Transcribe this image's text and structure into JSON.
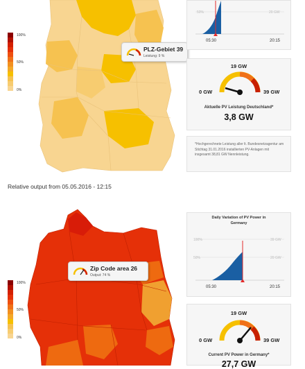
{
  "top": {
    "legend": {
      "labels": [
        "100%",
        "50%",
        "0%"
      ]
    },
    "tooltip": {
      "title": "PLZ-Gebiet 39",
      "subtitle": "Leistung: 9 %"
    },
    "chart": {
      "pct_label": "50%",
      "gw_label": "20 GW",
      "time_start": "05:30",
      "time_end": "20:15"
    },
    "gauge": {
      "max": "19 GW",
      "min_label": "0 GW",
      "max_label": "39 GW",
      "caption": "Aktuelle PV Leistung Deutschland*",
      "value": "3,8 GW"
    },
    "note": "*Hochgerechnete Leistung aller lt. Bundesnetzagentur am Stichtag 31.01.2016 installierten PV-Anlagen mit insgesamt 38,81 GW Nennleistung."
  },
  "timestamp": "Relative output from 05.05.2016 - 12:15",
  "bottom": {
    "legend": {
      "labels": [
        "100%",
        "50%",
        "0%"
      ]
    },
    "tooltip": {
      "title": "Zip Code area 26",
      "subtitle": "Output: 74 %"
    },
    "chart": {
      "title": "Daily Variation of PV Power in Germany",
      "pct_label_1": "100%",
      "pct_label_2": "50%",
      "gw_label_1": "39 GW",
      "gw_label_2": "20 GW",
      "time_start": "05:30",
      "time_end": "20:15"
    },
    "gauge": {
      "max": "19 GW",
      "min_label": "0 GW",
      "max_label": "39 GW",
      "caption": "Current PV Power in Germany*",
      "value": "27,7 GW"
    }
  },
  "colors": {
    "map_top_light": "#f8d591",
    "map_top_mid": "#f6c250",
    "map_top_yellow": "#f6c000",
    "map_bottom_red": "#e53008",
    "map_bottom_deep": "#d81c08",
    "map_bottom_orange": "#ee6a10",
    "map_bottom_amber": "#f0a030",
    "chart_fill": "#1a5fa3",
    "marker": "#e32b2b"
  },
  "icons": [
    "gauge-icon"
  ]
}
